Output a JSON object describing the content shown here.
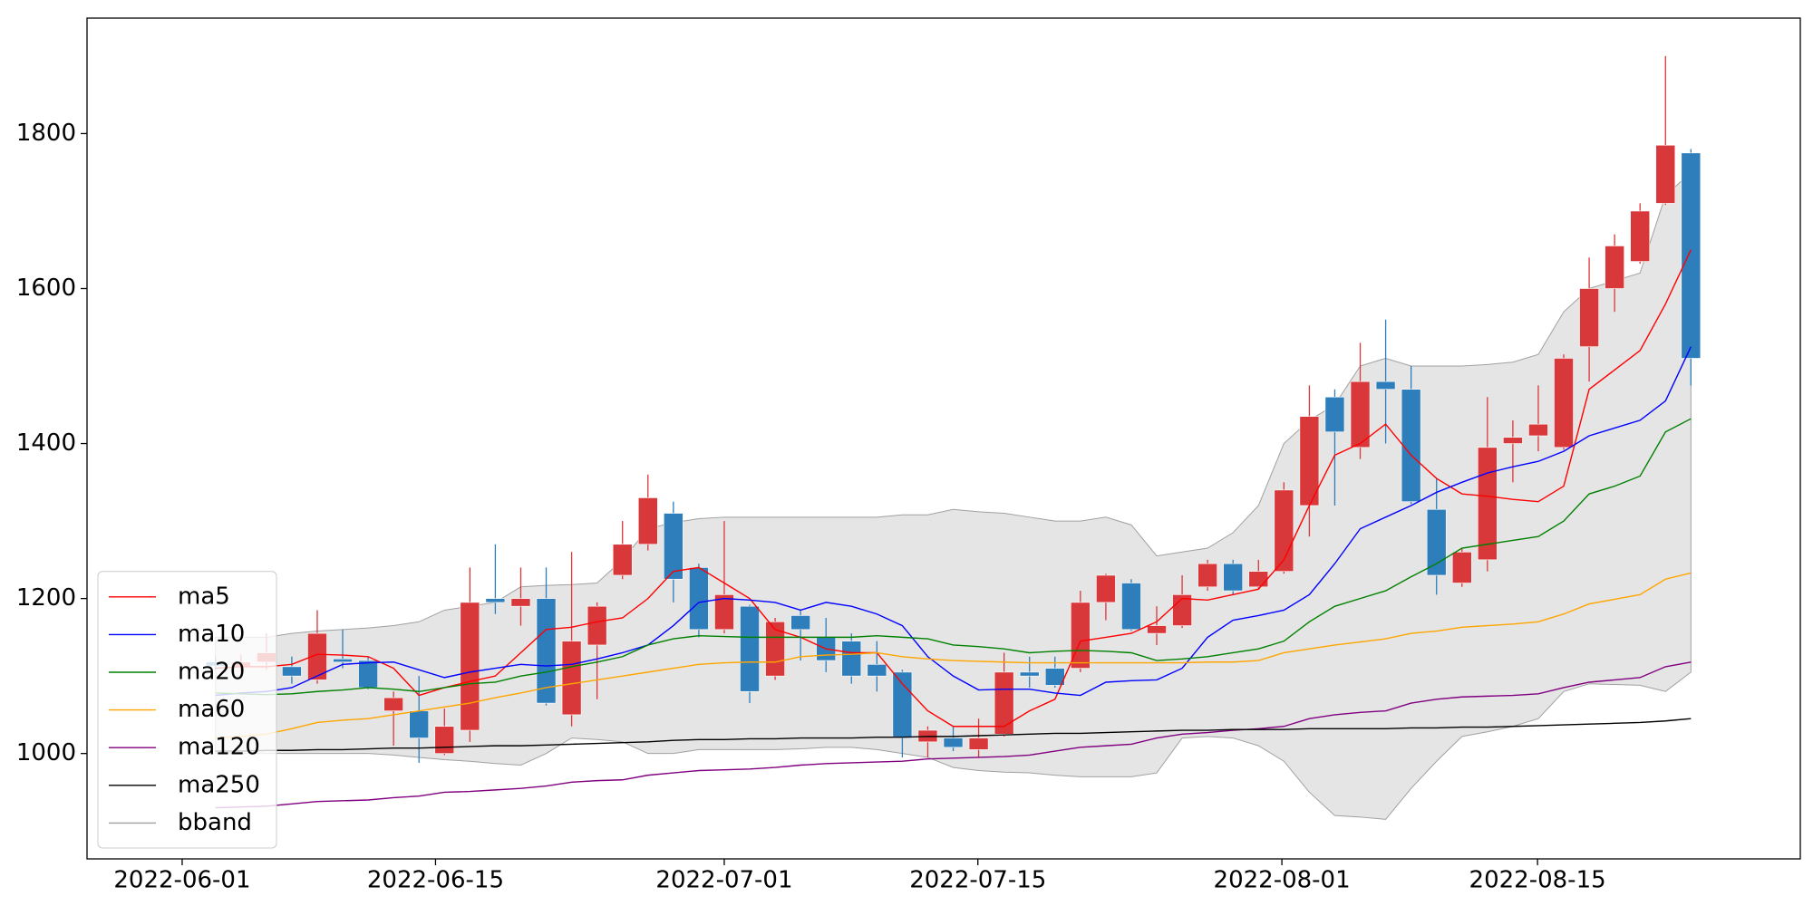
{
  "chart_data": {
    "type": "candlestick",
    "xlim": [
      -5.05,
      62.3
    ],
    "xticks": [
      {
        "value": -1.31,
        "label": "2022-06-01"
      },
      {
        "value": 8.65,
        "label": "2022-06-15"
      },
      {
        "value": 20.0,
        "label": "2022-07-01"
      },
      {
        "value": 29.97,
        "label": "2022-07-15"
      },
      {
        "value": 41.92,
        "label": "2022-08-01"
      },
      {
        "value": 51.97,
        "label": "2022-08-15"
      }
    ],
    "ylim": [
      864,
      1949
    ],
    "yticks": [
      1000,
      1200,
      1400,
      1600,
      1800
    ],
    "up_color": "#d9383a",
    "down_color": "#2e7ebc",
    "open": [
      1118,
      1112,
      1118,
      1112,
      1095,
      1122,
      1120,
      1055,
      1055,
      1000,
      1030,
      1200,
      1190,
      1200,
      1050,
      1140,
      1230,
      1270,
      1310,
      1240,
      1160,
      1190,
      1100,
      1178,
      1150,
      1145,
      1115,
      1105,
      1015,
      1020,
      1005,
      1025,
      1105,
      1110,
      1110,
      1195,
      1220,
      1155,
      1165,
      1215,
      1245,
      1215,
      1235,
      1320,
      1460,
      1395,
      1480,
      1470,
      1315,
      1220,
      1250,
      1400,
      1410,
      1395,
      1525,
      1600,
      1635,
      1710,
      1775
    ],
    "high": [
      1125,
      1128,
      1155,
      1125,
      1185,
      1160,
      1125,
      1080,
      1100,
      1058,
      1240,
      1270,
      1240,
      1240,
      1260,
      1195,
      1300,
      1360,
      1325,
      1245,
      1300,
      1192,
      1175,
      1185,
      1175,
      1155,
      1145,
      1108,
      1035,
      1035,
      1045,
      1130,
      1125,
      1125,
      1210,
      1232,
      1225,
      1190,
      1230,
      1250,
      1250,
      1250,
      1350,
      1475,
      1470,
      1530,
      1560,
      1500,
      1355,
      1265,
      1460,
      1430,
      1475,
      1515,
      1640,
      1670,
      1710,
      1900,
      1780
    ],
    "low": [
      1108,
      1105,
      1108,
      1090,
      1090,
      1110,
      1083,
      1010,
      988,
      998,
      1015,
      1180,
      1165,
      1062,
      1035,
      1070,
      1225,
      1262,
      1195,
      1150,
      1155,
      1065,
      1095,
      1120,
      1105,
      1090,
      1080,
      995,
      995,
      1003,
      995,
      1022,
      1085,
      1085,
      1105,
      1172,
      1158,
      1140,
      1162,
      1210,
      1205,
      1212,
      1232,
      1280,
      1320,
      1380,
      1400,
      1322,
      1205,
      1215,
      1235,
      1350,
      1390,
      1392,
      1480,
      1570,
      1632,
      1708,
      1475
    ],
    "close": [
      1113,
      1118,
      1130,
      1100,
      1155,
      1118,
      1085,
      1072,
      1020,
      1035,
      1195,
      1195,
      1200,
      1065,
      1145,
      1190,
      1270,
      1330,
      1225,
      1160,
      1205,
      1080,
      1170,
      1160,
      1120,
      1100,
      1100,
      1020,
      1030,
      1008,
      1020,
      1105,
      1100,
      1088,
      1195,
      1230,
      1160,
      1165,
      1205,
      1245,
      1210,
      1235,
      1340,
      1435,
      1415,
      1480,
      1470,
      1325,
      1230,
      1260,
      1395,
      1408,
      1425,
      1510,
      1600,
      1655,
      1700,
      1785,
      1510
    ],
    "series": [
      {
        "name": "ma5",
        "color": "#ff0000",
        "values": [
          1110,
          1112,
          1112,
          1115,
          1128,
          1127,
          1125,
          1110,
          1075,
          1085,
          1093,
          1100,
          1130,
          1160,
          1163,
          1170,
          1175,
          1200,
          1235,
          1240,
          1220,
          1200,
          1160,
          1150,
          1135,
          1130,
          1130,
          1090,
          1055,
          1035,
          1035,
          1035,
          1055,
          1070,
          1145,
          1150,
          1155,
          1170,
          1200,
          1198,
          1205,
          1212,
          1250,
          1320,
          1385,
          1400,
          1425,
          1385,
          1355,
          1335,
          1332,
          1328,
          1325,
          1345,
          1470,
          1495,
          1520,
          1580,
          1650
        ]
      },
      {
        "name": "ma10",
        "color": "#0000ff",
        "values": [
          1075,
          1078,
          1080,
          1085,
          1100,
          1115,
          1117,
          1118,
          1108,
          1098,
          1105,
          1110,
          1115,
          1113,
          1115,
          1122,
          1130,
          1140,
          1165,
          1195,
          1200,
          1198,
          1195,
          1185,
          1195,
          1190,
          1180,
          1165,
          1125,
          1100,
          1082,
          1083,
          1083,
          1078,
          1075,
          1092,
          1094,
          1095,
          1110,
          1150,
          1172,
          1178,
          1185,
          1205,
          1245,
          1290,
          1305,
          1320,
          1337,
          1350,
          1362,
          1370,
          1377,
          1390,
          1410,
          1420,
          1430,
          1455,
          1525
        ]
      },
      {
        "name": "ma20",
        "color": "#008000",
        "values": [
          1078,
          1077,
          1076,
          1077,
          1080,
          1082,
          1085,
          1083,
          1080,
          1085,
          1090,
          1092,
          1100,
          1105,
          1112,
          1118,
          1125,
          1140,
          1148,
          1152,
          1151,
          1150,
          1150,
          1150,
          1150,
          1150,
          1152,
          1150,
          1148,
          1140,
          1138,
          1135,
          1130,
          1132,
          1133,
          1132,
          1130,
          1120,
          1122,
          1125,
          1130,
          1135,
          1145,
          1170,
          1190,
          1200,
          1210,
          1228,
          1245,
          1265,
          1270,
          1275,
          1280,
          1300,
          1335,
          1345,
          1358,
          1415,
          1432
        ]
      },
      {
        "name": "ma60",
        "color": "#ffa500",
        "values": [
          1020,
          1022,
          1025,
          1032,
          1040,
          1043,
          1045,
          1050,
          1055,
          1060,
          1065,
          1072,
          1078,
          1085,
          1090,
          1095,
          1100,
          1105,
          1110,
          1115,
          1117,
          1118,
          1118,
          1125,
          1127,
          1128,
          1130,
          1125,
          1122,
          1120,
          1119,
          1118,
          1117,
          1117,
          1117,
          1117,
          1117,
          1117,
          1117,
          1118,
          1118,
          1120,
          1130,
          1135,
          1140,
          1144,
          1148,
          1155,
          1158,
          1163,
          1165,
          1167,
          1170,
          1180,
          1193,
          1199,
          1205,
          1225,
          1233
        ]
      },
      {
        "name": "ma120",
        "color": "#800080",
        "values": [
          930,
          931,
          932,
          935,
          938,
          939,
          940,
          943,
          945,
          950,
          951,
          953,
          955,
          958,
          963,
          965,
          966,
          972,
          975,
          978,
          979,
          980,
          982,
          985,
          987,
          988,
          989,
          990,
          993,
          994,
          995,
          996,
          998,
          1003,
          1008,
          1010,
          1012,
          1020,
          1025,
          1027,
          1030,
          1032,
          1035,
          1045,
          1050,
          1053,
          1055,
          1065,
          1070,
          1073,
          1074,
          1075,
          1077,
          1085,
          1092,
          1095,
          1098,
          1112,
          1118
        ]
      },
      {
        "name": "ma250",
        "color": "#000000",
        "values": [
          1003,
          1003,
          1004,
          1004,
          1005,
          1005,
          1006,
          1007,
          1007,
          1008,
          1009,
          1010,
          1010,
          1011,
          1012,
          1013,
          1014,
          1015,
          1017,
          1018,
          1018,
          1019,
          1019,
          1020,
          1020,
          1020,
          1021,
          1021,
          1022,
          1022,
          1023,
          1024,
          1025,
          1026,
          1026,
          1027,
          1028,
          1029,
          1030,
          1030,
          1031,
          1031,
          1031,
          1032,
          1032,
          1032,
          1032,
          1033,
          1033,
          1034,
          1034,
          1035,
          1036,
          1037,
          1038,
          1039,
          1040,
          1042,
          1045
        ]
      }
    ],
    "band": {
      "name": "bband",
      "color": "#a0a0a0",
      "fill": "#e5e5e5",
      "upper": [
        1150,
        1150,
        1150,
        1155,
        1158,
        1160,
        1162,
        1165,
        1170,
        1185,
        1190,
        1195,
        1215,
        1217,
        1218,
        1220,
        1250,
        1290,
        1298,
        1303,
        1305,
        1305,
        1305,
        1305,
        1305,
        1305,
        1305,
        1308,
        1308,
        1315,
        1312,
        1310,
        1305,
        1300,
        1300,
        1305,
        1295,
        1255,
        1260,
        1265,
        1285,
        1320,
        1400,
        1430,
        1450,
        1500,
        1510,
        1500,
        1500,
        1500,
        1502,
        1505,
        1515,
        1570,
        1600,
        1610,
        1620,
        1720,
        1750
      ],
      "lower": [
        1000,
        1000,
        1000,
        1000,
        1000,
        1000,
        1000,
        998,
        995,
        992,
        990,
        987,
        985,
        1000,
        1020,
        1018,
        1015,
        1000,
        1000,
        1005,
        1005,
        1005,
        1005,
        1006,
        1008,
        1008,
        1005,
        1000,
        995,
        982,
        978,
        976,
        975,
        972,
        970,
        970,
        970,
        975,
        1020,
        1022,
        1020,
        1010,
        990,
        950,
        920,
        918,
        915,
        955,
        990,
        1022,
        1028,
        1035,
        1045,
        1080,
        1090,
        1089,
        1088,
        1080,
        1105
      ]
    },
    "legend": "lower left"
  }
}
